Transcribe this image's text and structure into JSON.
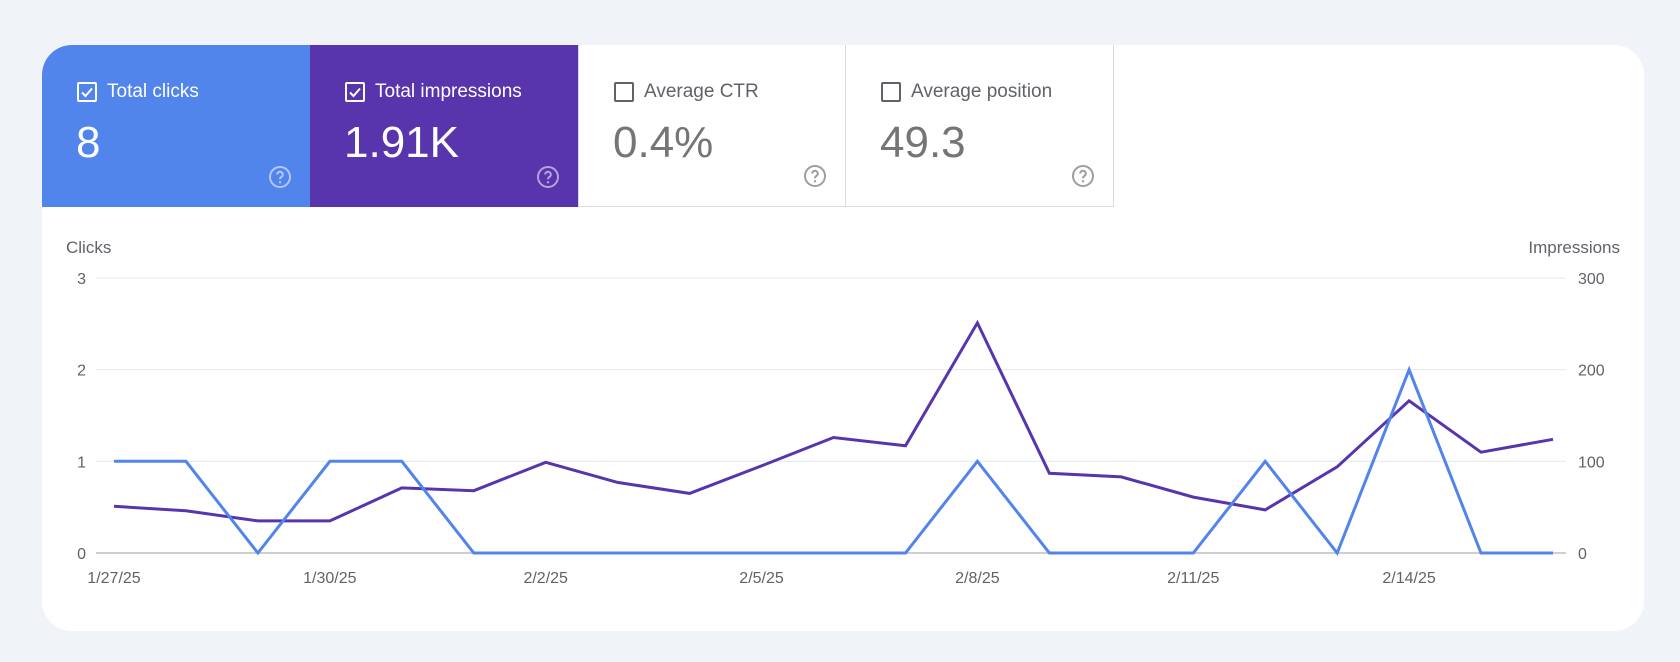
{
  "metrics": [
    {
      "key": "clicks",
      "label": "Total clicks",
      "value": "8",
      "checked": true,
      "color": "#5185ec"
    },
    {
      "key": "impressions",
      "label": "Total impressions",
      "value": "1.91K",
      "checked": true,
      "color": "#5835ac"
    },
    {
      "key": "ctr",
      "label": "Average CTR",
      "value": "0.4%",
      "checked": false
    },
    {
      "key": "position",
      "label": "Average position",
      "value": "49.3",
      "checked": false
    }
  ],
  "chart_data": {
    "type": "line",
    "ylabel_left": "Clicks",
    "ylabel_right": "Impressions",
    "y_left_ticks": [
      "0",
      "1",
      "2",
      "3"
    ],
    "y_right_ticks": [
      "0",
      "100",
      "200",
      "300"
    ],
    "ylim_left": [
      0,
      3
    ],
    "ylim_right": [
      0,
      300
    ],
    "x": [
      "1/27/25",
      "1/28/25",
      "1/29/25",
      "1/30/25",
      "1/31/25",
      "2/1/25",
      "2/2/25",
      "2/3/25",
      "2/4/25",
      "2/5/25",
      "2/6/25",
      "2/7/25",
      "2/8/25",
      "2/9/25",
      "2/10/25",
      "2/11/25",
      "2/12/25",
      "2/13/25",
      "2/14/25",
      "2/15/25",
      "2/16/25"
    ],
    "x_tick_labels": [
      "1/27/25",
      "1/30/25",
      "2/2/25",
      "2/5/25",
      "2/8/25",
      "2/11/25",
      "2/14/25"
    ],
    "grid": true,
    "series": [
      {
        "name": "Clicks",
        "axis": "left",
        "color": "#5185ec",
        "values": [
          1,
          1,
          0,
          1,
          1,
          0,
          0,
          0,
          0,
          0,
          0,
          0,
          1,
          0,
          0,
          0,
          1,
          0,
          2,
          0,
          0
        ]
      },
      {
        "name": "Impressions",
        "axis": "right",
        "color": "#5835ac",
        "values": [
          51,
          46,
          35,
          35,
          71,
          68,
          99,
          77,
          65,
          95,
          126,
          117,
          251,
          87,
          83,
          61,
          47,
          94,
          166,
          110,
          124
        ]
      }
    ]
  }
}
